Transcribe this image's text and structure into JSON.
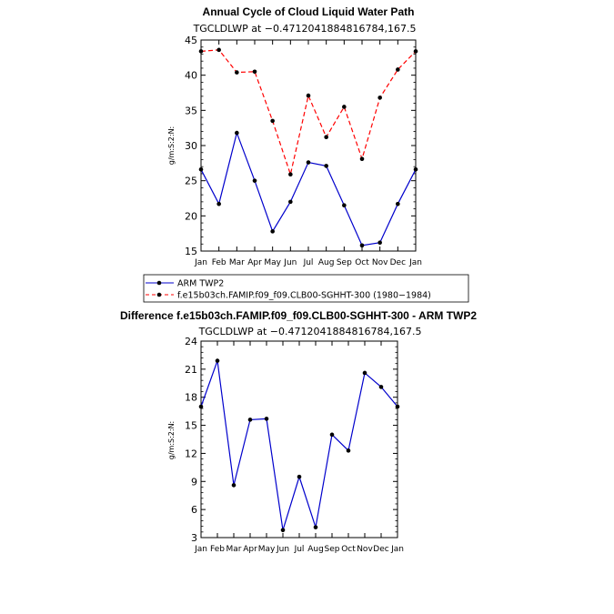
{
  "chart_data": [
    {
      "type": "line",
      "title": "Annual Cycle of Cloud Liquid Water Path",
      "subtitle": "TGCLDLWP  at  −0.4712041884816784,167.5",
      "xlabel": "",
      "ylabel": "g/m:S:2:N:",
      "categories": [
        "Jan",
        "Feb",
        "Mar",
        "Apr",
        "May",
        "Jun",
        "Jul",
        "Aug",
        "Sep",
        "Oct",
        "Nov",
        "Dec",
        "Jan"
      ],
      "ylim": [
        15,
        45
      ],
      "yticks": [
        "15",
        "20",
        "25",
        "30",
        "35",
        "40",
        "45"
      ],
      "grid": false,
      "series": [
        {
          "name": "ARM TWP2",
          "color": "#0000cc",
          "dash": "solid",
          "values": [
            26.6,
            21.7,
            31.8,
            25.0,
            17.8,
            22.0,
            27.6,
            27.1,
            21.5,
            15.8,
            16.2,
            21.7,
            26.6
          ]
        },
        {
          "name": "f.e15b03ch.FAMIP.f09_f09.CLB00-SGHHT-300 (1980−1984)",
          "color": "#ff0000",
          "dash": "dashed",
          "values": [
            43.4,
            43.6,
            40.4,
            40.5,
            33.5,
            25.9,
            37.1,
            31.2,
            35.5,
            28.1,
            36.8,
            40.8,
            43.4
          ]
        }
      ],
      "legend": "below"
    },
    {
      "type": "line",
      "title": "Difference f.e15b03ch.FAMIP.f09_f09.CLB00-SGHHT-300 - ARM TWP2",
      "subtitle": "TGCLDLWP  at  −0.4712041884816784,167.5",
      "xlabel": "",
      "ylabel": "g/m:S:2:N:",
      "categories": [
        "Jan",
        "Feb",
        "Mar",
        "Apr",
        "May",
        "Jun",
        "Jul",
        "Aug",
        "Sep",
        "Oct",
        "Nov",
        "Dec",
        "Jan"
      ],
      "ylim": [
        3,
        24
      ],
      "yticks": [
        "3",
        "6",
        "9",
        "12",
        "15",
        "18",
        "21",
        "24"
      ],
      "grid": false,
      "series": [
        {
          "name": "Difference",
          "color": "#0000cc",
          "dash": "solid",
          "values": [
            17.0,
            21.9,
            8.6,
            15.6,
            15.7,
            3.8,
            9.5,
            4.1,
            14.0,
            12.3,
            20.6,
            19.1,
            17.0
          ]
        }
      ]
    }
  ]
}
